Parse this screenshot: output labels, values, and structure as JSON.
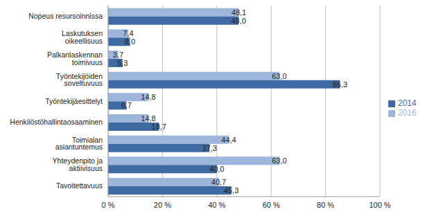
{
  "chart_data": {
    "type": "bar",
    "orientation": "horizontal",
    "categories": [
      "Nopeus resursoinnissa",
      "Laskutuksen oikeellisuus",
      "Palkanlaskennan toimivuus",
      "Työntekijöiden soveltuvuus",
      "Työntekijäesittelyt",
      "Henkilöstöhallintaosaaminen",
      "Toimialan asiantuntemus",
      "Yhteydenpito ja aktiivisuus",
      "Tavoitettavuus"
    ],
    "series": [
      {
        "name": "2016",
        "color": "#9fb6dc",
        "values": [
          48.1,
          7.4,
          3.7,
          63.0,
          14.8,
          14.8,
          44.4,
          63.0,
          40.7
        ],
        "value_labels": [
          "48,1",
          "7,4",
          "3,7",
          "63,0",
          "14,8",
          "14,8",
          "44,4",
          "63,0",
          "40,7"
        ]
      },
      {
        "name": "2014",
        "color": "#3f6aa3",
        "values": [
          48.0,
          8.0,
          5.3,
          85.3,
          6.7,
          18.7,
          37.3,
          40.0,
          45.3
        ],
        "value_labels": [
          "48,0",
          "8,0",
          "5,3",
          "85,3",
          "6,7",
          "18,7",
          "37,3",
          "40,0",
          "45,3"
        ]
      }
    ],
    "xlim": [
      0,
      100
    ],
    "xticks": [
      {
        "value": 0,
        "label": "0 %"
      },
      {
        "value": 20,
        "label": "20 %"
      },
      {
        "value": 40,
        "label": "40 %"
      },
      {
        "value": 60,
        "label": "60 %"
      },
      {
        "value": 80,
        "label": "80 %"
      },
      {
        "value": 100,
        "label": "100 %"
      }
    ],
    "grid": true,
    "legend": "right",
    "data_labels": true
  }
}
